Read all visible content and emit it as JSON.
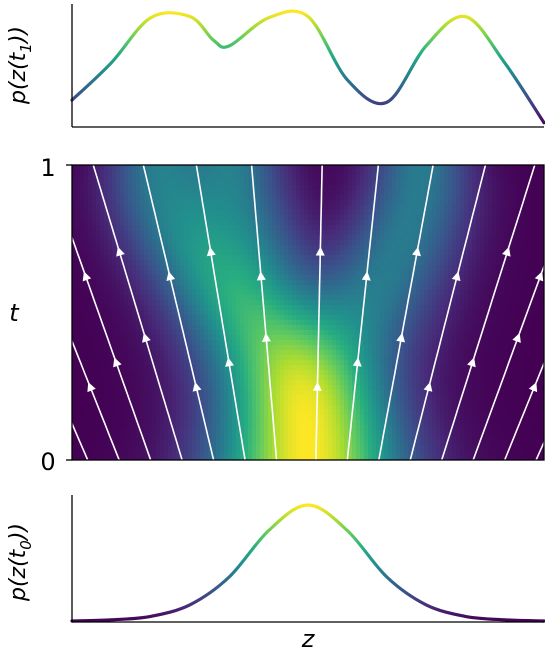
{
  "chart_data": [
    {
      "type": "line",
      "ylabel": "p(z(t₁))",
      "ylabel_parts": {
        "base": "p(z(t",
        "sub": "1",
        "close": "))"
      },
      "x": [
        -3.0,
        -2.5,
        -2.0,
        -1.5,
        -1.2,
        -1.0,
        -0.5,
        0.0,
        0.5,
        1.0,
        1.5,
        2.0,
        2.5,
        3.0
      ],
      "y": [
        0.22,
        0.55,
        0.95,
        0.96,
        0.75,
        0.7,
        0.95,
        0.96,
        0.4,
        0.2,
        0.7,
        0.96,
        0.55,
        0.02
      ],
      "grid": false,
      "colormap": "viridis"
    },
    {
      "type": "heatmap",
      "ylabel": "t",
      "yticks": [
        "0",
        "1"
      ],
      "ylim": [
        0,
        1
      ],
      "colormap": "viridis",
      "overlay": "streamlines",
      "grid": false
    },
    {
      "type": "line",
      "ylabel": "p(z(t₀))",
      "ylabel_parts": {
        "base": "p(z(t",
        "sub": "0",
        "close": "))"
      },
      "xlabel": "z",
      "x": [
        -3.0,
        -2.5,
        -2.0,
        -1.5,
        -1.0,
        -0.5,
        0.0,
        0.5,
        1.0,
        1.5,
        2.0,
        2.5,
        3.0
      ],
      "y": [
        0.0,
        0.01,
        0.04,
        0.14,
        0.38,
        0.78,
        1.0,
        0.78,
        0.38,
        0.14,
        0.04,
        0.01,
        0.0
      ],
      "grid": false,
      "colormap": "viridis"
    }
  ]
}
